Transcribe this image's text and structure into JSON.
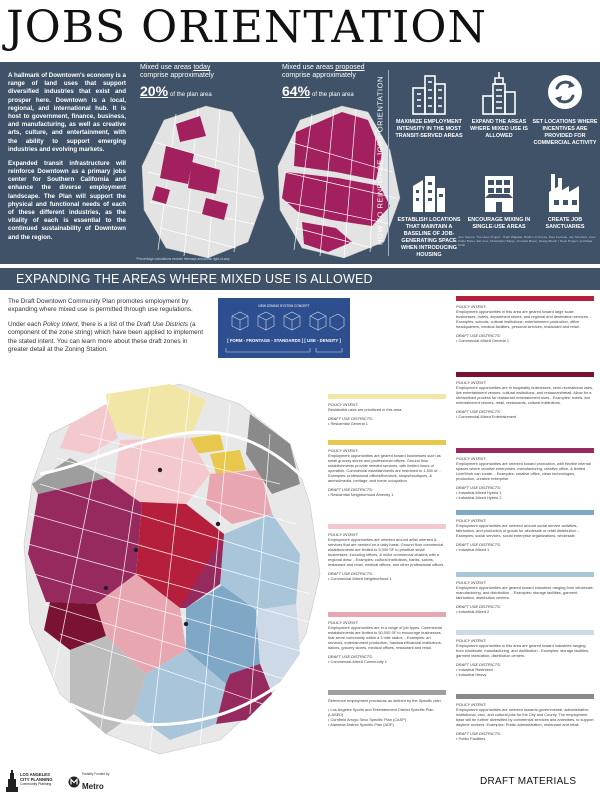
{
  "title": "JOBS ORIENTATION",
  "intro": {
    "p1": "A hallmark of Downtown's economy is a range of land uses that support diversified industries that exist and prosper here. Downtown is a local, regional, and international hub. It is host to government, finance, business, and manufacturing, as well as creative arts, culture, and entertainment, with the ability to support emerging industries and evolving markets.",
    "p2": "Expanded transit infrastructure will reinforce Downtown as a primary jobs center for Southern California and enhance the diverse employment landscape. The Plan will support the physical and functional needs of each of these different industries, as the vitality of each is essential to the continued sustainability of Downtown and the region."
  },
  "maps": {
    "today": {
      "caption_a": "Mixed use areas ",
      "caption_u": "today",
      "caption_b": "comprise approximately",
      "pct": "20%",
      "suffix": "of the plan area"
    },
    "proposed": {
      "caption_a": "Mixed use areas ",
      "caption_u": "proposed",
      "caption_b": "comprise approximately",
      "pct": "64%",
      "suffix": "of the plan area"
    },
    "note": "*Percentage calculations exclude freeways and public right-of-way"
  },
  "how_label": "HOW TO REINFORCE JOBS ORIENTATION",
  "strategies": [
    {
      "label": "MAXIMIZE EMPLOYMENT INTENSITY IN THE MOST TRANSIT-SERVED AREAS",
      "icon": "buildings-icon"
    },
    {
      "label": "EXPAND THE AREAS WHERE MIXED USE IS ALLOWED",
      "icon": "tower-icon"
    },
    {
      "label": "SET LOCATIONS WHERE INCENTIVES ARE PROVIDED FOR COMMERCIAL ACTIVITY",
      "icon": "arrows-icon"
    },
    {
      "label": "ESTABLISH LOCATIONS THAT MAINTAIN A BASELINE OF JOB-GENERATING SPACE WHEN INTRODUCING HOUSING",
      "icon": "mixed-building-icon"
    },
    {
      "label": "ENCOURAGE MIXING IN SINGLE-USE AREAS",
      "icon": "storefront-icon"
    },
    {
      "label": "CREATE JOB SANCTUARIES",
      "icon": "factory-icon"
    }
  ],
  "sources": "Icon Source: The Noun Project - Hafiz Wajahat, Brother & Teresa, Pete Fecteau, Jan Schubert, Juan Pablo Bravo, Eat Cow, Christopher Barge, Gonzalo Bravo, Design Berlin / Noun Project, and Maja Kuhn",
  "section_title": "EXPANDING THE AREAS WHERE MIXED USE IS ALLOWED",
  "body": {
    "p1": "The Draft Downtown Community Plan promotes employment by expanding where mixed use is permitted through use regulations.",
    "p2_a": "Under each ",
    "p2_b": "Policy Intent",
    "p2_c": ", there is a list of the ",
    "p2_d": "Draft Use Districts",
    "p2_e": " (a component of the zone string) which have been applied to implement the stated intent. You can learn more about these draft zones in greater detail at the Zoning Station."
  },
  "zone_diagram": {
    "title": "NEW ZONING SYSTEM CONCEPT",
    "formula": "[ FORM - FRONTAGE - STANDARDS ] [ USE - DENSITY ]"
  },
  "legend_mid": [
    {
      "color": "#f2e6a6",
      "intent": "Residential uses are prioritized in this area.",
      "districts": [
        "Residential General 1"
      ]
    },
    {
      "color": "#e8c84c",
      "intent": "Employment opportunities are geared toward businesses such as small grocery stores and professional offices. Ground floor establishments provide needed services, with limited hours of operation. Commercial establishments are restricted to 1,500 sf. - Examples: professional offices/live/work, shops/boutiques, & animal/media, heritage, and home occupation.",
      "districts": [
        "Residential Neighborhood Amenity 1"
      ]
    },
    {
      "color": "#f4c9cd",
      "intent": "Employment opportunities are oriented around artist-oriented & services that are needed on a daily basis. Ground floor commercial establishments are limited to 5,000 SF to prioritize small businesses, including offices, & niche commercial clusters with a regional draw. - Examples: cultural institutions, banks, salons, restaurant and retail, medical offices, and other professional offices.",
      "districts": [
        "Commercial-Mixed Neighborhood 1"
      ]
    },
    {
      "color": "#e8a6b0",
      "intent": "Employment opportunities are in a range of job types. Commercial establishments are limited to 50,000 SF to encourage businesses that serve community within a 3 mile radius. - Examples: art services, entertainment production, hardware/financial institutions, salons, grocery stores, medical offices, restaurant and retail.",
      "districts": [
        "Commercial-Mixed Community 1"
      ]
    },
    {
      "color": "#9e9e9e",
      "intent": "Reference employment provisions as defined by the Specific plan.",
      "districts": [
        "Los Angeles Sports and Entertainment District Specific Plan (LASED)",
        "Cornfield Arroyo Seco Specific Plan (CASP)",
        "Alameda District Specific Plan (ADP)"
      ],
      "plain": true
    }
  ],
  "legend_right": [
    {
      "color": "#b51f3c",
      "intent": "Employment opportunities in this area are geared toward large scale businesses, hotels, department stores, and regional and destination services. - Examples: schools, cultural institutions, entertainment production, office headquarters, medical facilities, personal services, restaurant and retail.",
      "districts": [
        "Commercial-Mixed General 1"
      ]
    },
    {
      "color": "#7a1232",
      "intent": "Employment opportunities are in hospitality businesses, semi-recreational uses, live entertainment venues, cultural institutions, and restaurant/retail. Allow for a streamlined process for restaurant entertainment uses - Examples: hotels, live entertainment venues, retail, restaurants, cultural institutions.",
      "districts": [
        "Commercial-Mixed Entertainment"
      ]
    },
    {
      "color": "#962a5e",
      "intent": "Employment opportunities are oriented toward production, with flexible internal spaces where creative enterprises, manufacturing, creative office, & limited Live/Work can locate. - Examples: creative office, clean technologies, production, creative enterprise.",
      "districts": [
        "Industrial-Mixed Hybrid 1",
        "Industrial-Mixed Hybrid 2"
      ]
    },
    {
      "color": "#7fa7c6",
      "intent": "Employment opportunities are oriented around social service activities, fabrication, and production of goods for wholesale or retail distribution. - Examples: social services, social enterprise organizations, wholesale.",
      "districts": [
        "Industrial-Mixed 1"
      ]
    },
    {
      "color": "#a9c5da",
      "intent": "Employment opportunities are geared toward industries ranging from wholesale, manufacturing, and distribution. - Examples: storage facilities, garment fabrication, distribution centers.",
      "districts": [
        "Industrial-Mixed 2"
      ]
    },
    {
      "color": "#cdd9e6",
      "intent": "Employment opportunities in this area are geared toward industries ranging from wholesale, manufacturing, and distribution - Examples: storage facilities, garment fabrication, distribution centers.",
      "districts": [
        "Industrial Restricted",
        "Industrial Heavy"
      ]
    },
    {
      "color": "#8a8a8a",
      "intent": "Employment opportunities are oriented towards governmental, administrative, institutional, civic, and cultural jobs for the City and County. The employment base will be further diversified by commercial services and amenities, to support daytime workers. Examples: Public administration, restaurant and retail.",
      "districts": [
        "Public Facilities"
      ]
    }
  ],
  "labels": {
    "policy_intent": "POLICY INTENT:",
    "draft_use": "DRAFT USE DISTRICTS:"
  },
  "footer": {
    "la_line1": "LOS ANGELES",
    "la_line2": "CITY PLANNING",
    "la_line3": "Community Planning",
    "metro_small": "Partially Funded by",
    "metro_word": "Metro",
    "draft": "DRAFT MATERIALS"
  },
  "colors": {
    "panel": "#3f5268",
    "magenta": "#a3205e",
    "map_bg": "#dcdcdc"
  }
}
